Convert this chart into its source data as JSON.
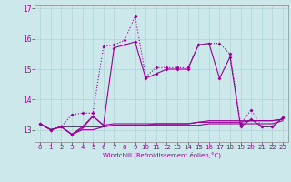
{
  "xlabel": "Windchill (Refroidissement éolien,°C)",
  "background_color": "#cce8ea",
  "grid_color": "#aad4d8",
  "line_color": "#990099",
  "xlim": [
    -0.5,
    23.5
  ],
  "ylim": [
    12.6,
    17.1
  ],
  "yticks": [
    13,
    14,
    15,
    16,
    17
  ],
  "xticks": [
    0,
    1,
    2,
    3,
    4,
    5,
    6,
    7,
    8,
    9,
    10,
    11,
    12,
    13,
    14,
    15,
    16,
    17,
    18,
    19,
    20,
    21,
    22,
    23
  ],
  "series_main_x": [
    0,
    1,
    2,
    3,
    4,
    5,
    6,
    7,
    8,
    9,
    10,
    11,
    12,
    13,
    14,
    15,
    16,
    17,
    18,
    19,
    20,
    21,
    22,
    23
  ],
  "series_main_y": [
    13.2,
    13.0,
    13.1,
    13.5,
    13.55,
    13.55,
    15.75,
    15.8,
    15.95,
    16.75,
    14.75,
    15.05,
    15.05,
    15.05,
    15.05,
    15.8,
    15.85,
    15.85,
    15.5,
    13.2,
    13.65,
    13.1,
    13.1,
    13.4
  ],
  "series_mid_x": [
    0,
    1,
    2,
    3,
    4,
    5,
    6,
    7,
    8,
    9,
    10,
    11,
    12,
    13,
    14,
    15,
    16,
    17,
    18,
    19,
    20,
    21,
    22,
    23
  ],
  "series_mid_y": [
    13.2,
    13.0,
    13.1,
    12.85,
    13.1,
    13.45,
    13.15,
    15.7,
    15.8,
    15.9,
    14.7,
    14.85,
    15.0,
    15.0,
    15.0,
    15.8,
    15.85,
    14.7,
    15.4,
    13.1,
    13.35,
    13.1,
    13.1,
    13.4
  ],
  "series_flat1_x": [
    0,
    1,
    2,
    3,
    4,
    5,
    6,
    7,
    8,
    9,
    10,
    11,
    12,
    13,
    14,
    15,
    16,
    17,
    18,
    19,
    20,
    21,
    22,
    23
  ],
  "series_flat1_y": [
    13.2,
    13.0,
    13.1,
    13.1,
    13.1,
    13.1,
    13.1,
    13.15,
    13.15,
    13.15,
    13.15,
    13.2,
    13.2,
    13.2,
    13.2,
    13.25,
    13.3,
    13.3,
    13.3,
    13.3,
    13.3,
    13.3,
    13.3,
    13.35
  ],
  "series_flat2_x": [
    0,
    1,
    2,
    3,
    4,
    5,
    6,
    7,
    8,
    9,
    10,
    11,
    12,
    13,
    14,
    15,
    16,
    17,
    18,
    19,
    20,
    21,
    22,
    23
  ],
  "series_flat2_y": [
    13.2,
    13.0,
    13.1,
    12.85,
    13.0,
    13.0,
    13.1,
    13.15,
    13.15,
    13.15,
    13.15,
    13.15,
    13.15,
    13.15,
    13.15,
    13.15,
    13.2,
    13.2,
    13.2,
    13.2,
    13.2,
    13.2,
    13.2,
    13.3
  ],
  "series_flat3_x": [
    0,
    1,
    2,
    3,
    4,
    5,
    6,
    7,
    8,
    9,
    10,
    11,
    12,
    13,
    14,
    15,
    16,
    17,
    18,
    19,
    20,
    21,
    22,
    23
  ],
  "series_flat3_y": [
    13.2,
    13.0,
    13.1,
    12.85,
    13.05,
    13.45,
    13.15,
    13.2,
    13.2,
    13.2,
    13.2,
    13.2,
    13.2,
    13.2,
    13.2,
    13.25,
    13.25,
    13.25,
    13.25,
    13.25,
    13.3,
    13.3,
    13.3,
    13.35
  ]
}
